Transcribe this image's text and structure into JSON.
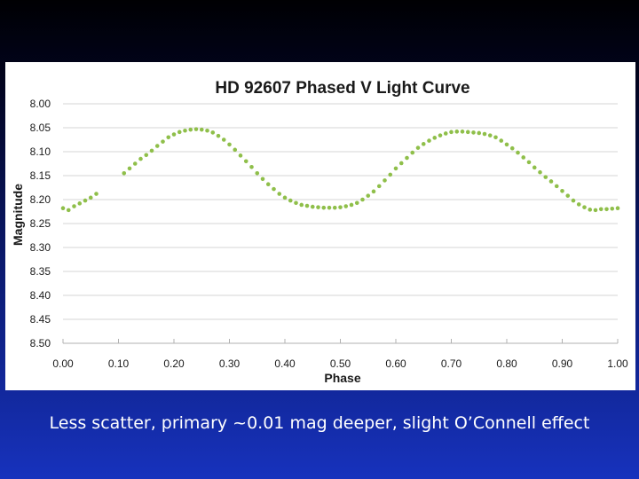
{
  "caption": "Less scatter, primary ~0.01 mag deeper, slight O’Connell effect",
  "chart_data": {
    "type": "scatter",
    "title": "HD 92607 Phased V Light Curve",
    "xlabel": "Phase",
    "ylabel": "Magnitude",
    "xlim": [
      0.0,
      1.0
    ],
    "ylim": [
      8.0,
      8.5
    ],
    "y_inverted": true,
    "x_ticks": [
      "0.00",
      "0.10",
      "0.20",
      "0.30",
      "0.40",
      "0.50",
      "0.60",
      "0.70",
      "0.80",
      "0.90",
      "1.00"
    ],
    "y_ticks": [
      "8.00",
      "8.05",
      "8.10",
      "8.15",
      "8.20",
      "8.25",
      "8.30",
      "8.35",
      "8.40",
      "8.45",
      "8.50"
    ],
    "grid": "horizontal",
    "legend": "none",
    "marker_color": "#8fbf4a",
    "series": [
      {
        "x": [
          0.0,
          0.01,
          0.02,
          0.03,
          0.04,
          0.05,
          0.06,
          0.11,
          0.12,
          0.13,
          0.14,
          0.15,
          0.16,
          0.17,
          0.18,
          0.19,
          0.2,
          0.21,
          0.22,
          0.23,
          0.24,
          0.25,
          0.26,
          0.27,
          0.28,
          0.29,
          0.3,
          0.31,
          0.32,
          0.33,
          0.34,
          0.35,
          0.36,
          0.37,
          0.38,
          0.39,
          0.4,
          0.41,
          0.42,
          0.43,
          0.44,
          0.45,
          0.46,
          0.47,
          0.48,
          0.49,
          0.5,
          0.51,
          0.52,
          0.53,
          0.54,
          0.55,
          0.56,
          0.57,
          0.58,
          0.59,
          0.6,
          0.61,
          0.62,
          0.63,
          0.64,
          0.65,
          0.66,
          0.67,
          0.68,
          0.69,
          0.7,
          0.71,
          0.72,
          0.73,
          0.74,
          0.75,
          0.76,
          0.77,
          0.78,
          0.79,
          0.8,
          0.81,
          0.82,
          0.83,
          0.84,
          0.85,
          0.86,
          0.87,
          0.88,
          0.89,
          0.9,
          0.91,
          0.92,
          0.93,
          0.94,
          0.95,
          0.96,
          0.97,
          0.98,
          0.99,
          1.0
        ],
        "y": [
          8.218,
          8.222,
          8.214,
          8.208,
          8.202,
          8.196,
          8.188,
          8.145,
          8.135,
          8.125,
          8.115,
          8.107,
          8.098,
          8.088,
          8.079,
          8.07,
          8.064,
          8.059,
          8.056,
          8.054,
          8.053,
          8.054,
          8.056,
          8.06,
          8.067,
          8.075,
          8.085,
          8.096,
          8.108,
          8.12,
          8.132,
          8.145,
          8.157,
          8.168,
          8.178,
          8.188,
          8.196,
          8.202,
          8.207,
          8.211,
          8.213,
          8.215,
          8.216,
          8.217,
          8.217,
          8.217,
          8.216,
          8.214,
          8.211,
          8.207,
          8.2,
          8.192,
          8.183,
          8.172,
          8.16,
          8.148,
          8.135,
          8.124,
          8.113,
          8.102,
          8.092,
          8.084,
          8.077,
          8.071,
          8.066,
          8.062,
          8.059,
          8.058,
          8.058,
          8.059,
          8.06,
          8.061,
          8.063,
          8.066,
          8.07,
          8.077,
          8.085,
          8.093,
          8.102,
          8.112,
          8.122,
          8.133,
          8.143,
          8.153,
          8.162,
          8.172,
          8.182,
          8.192,
          8.202,
          8.21,
          8.216,
          8.221,
          8.222,
          8.22,
          8.22,
          8.219,
          8.218
        ]
      }
    ]
  }
}
